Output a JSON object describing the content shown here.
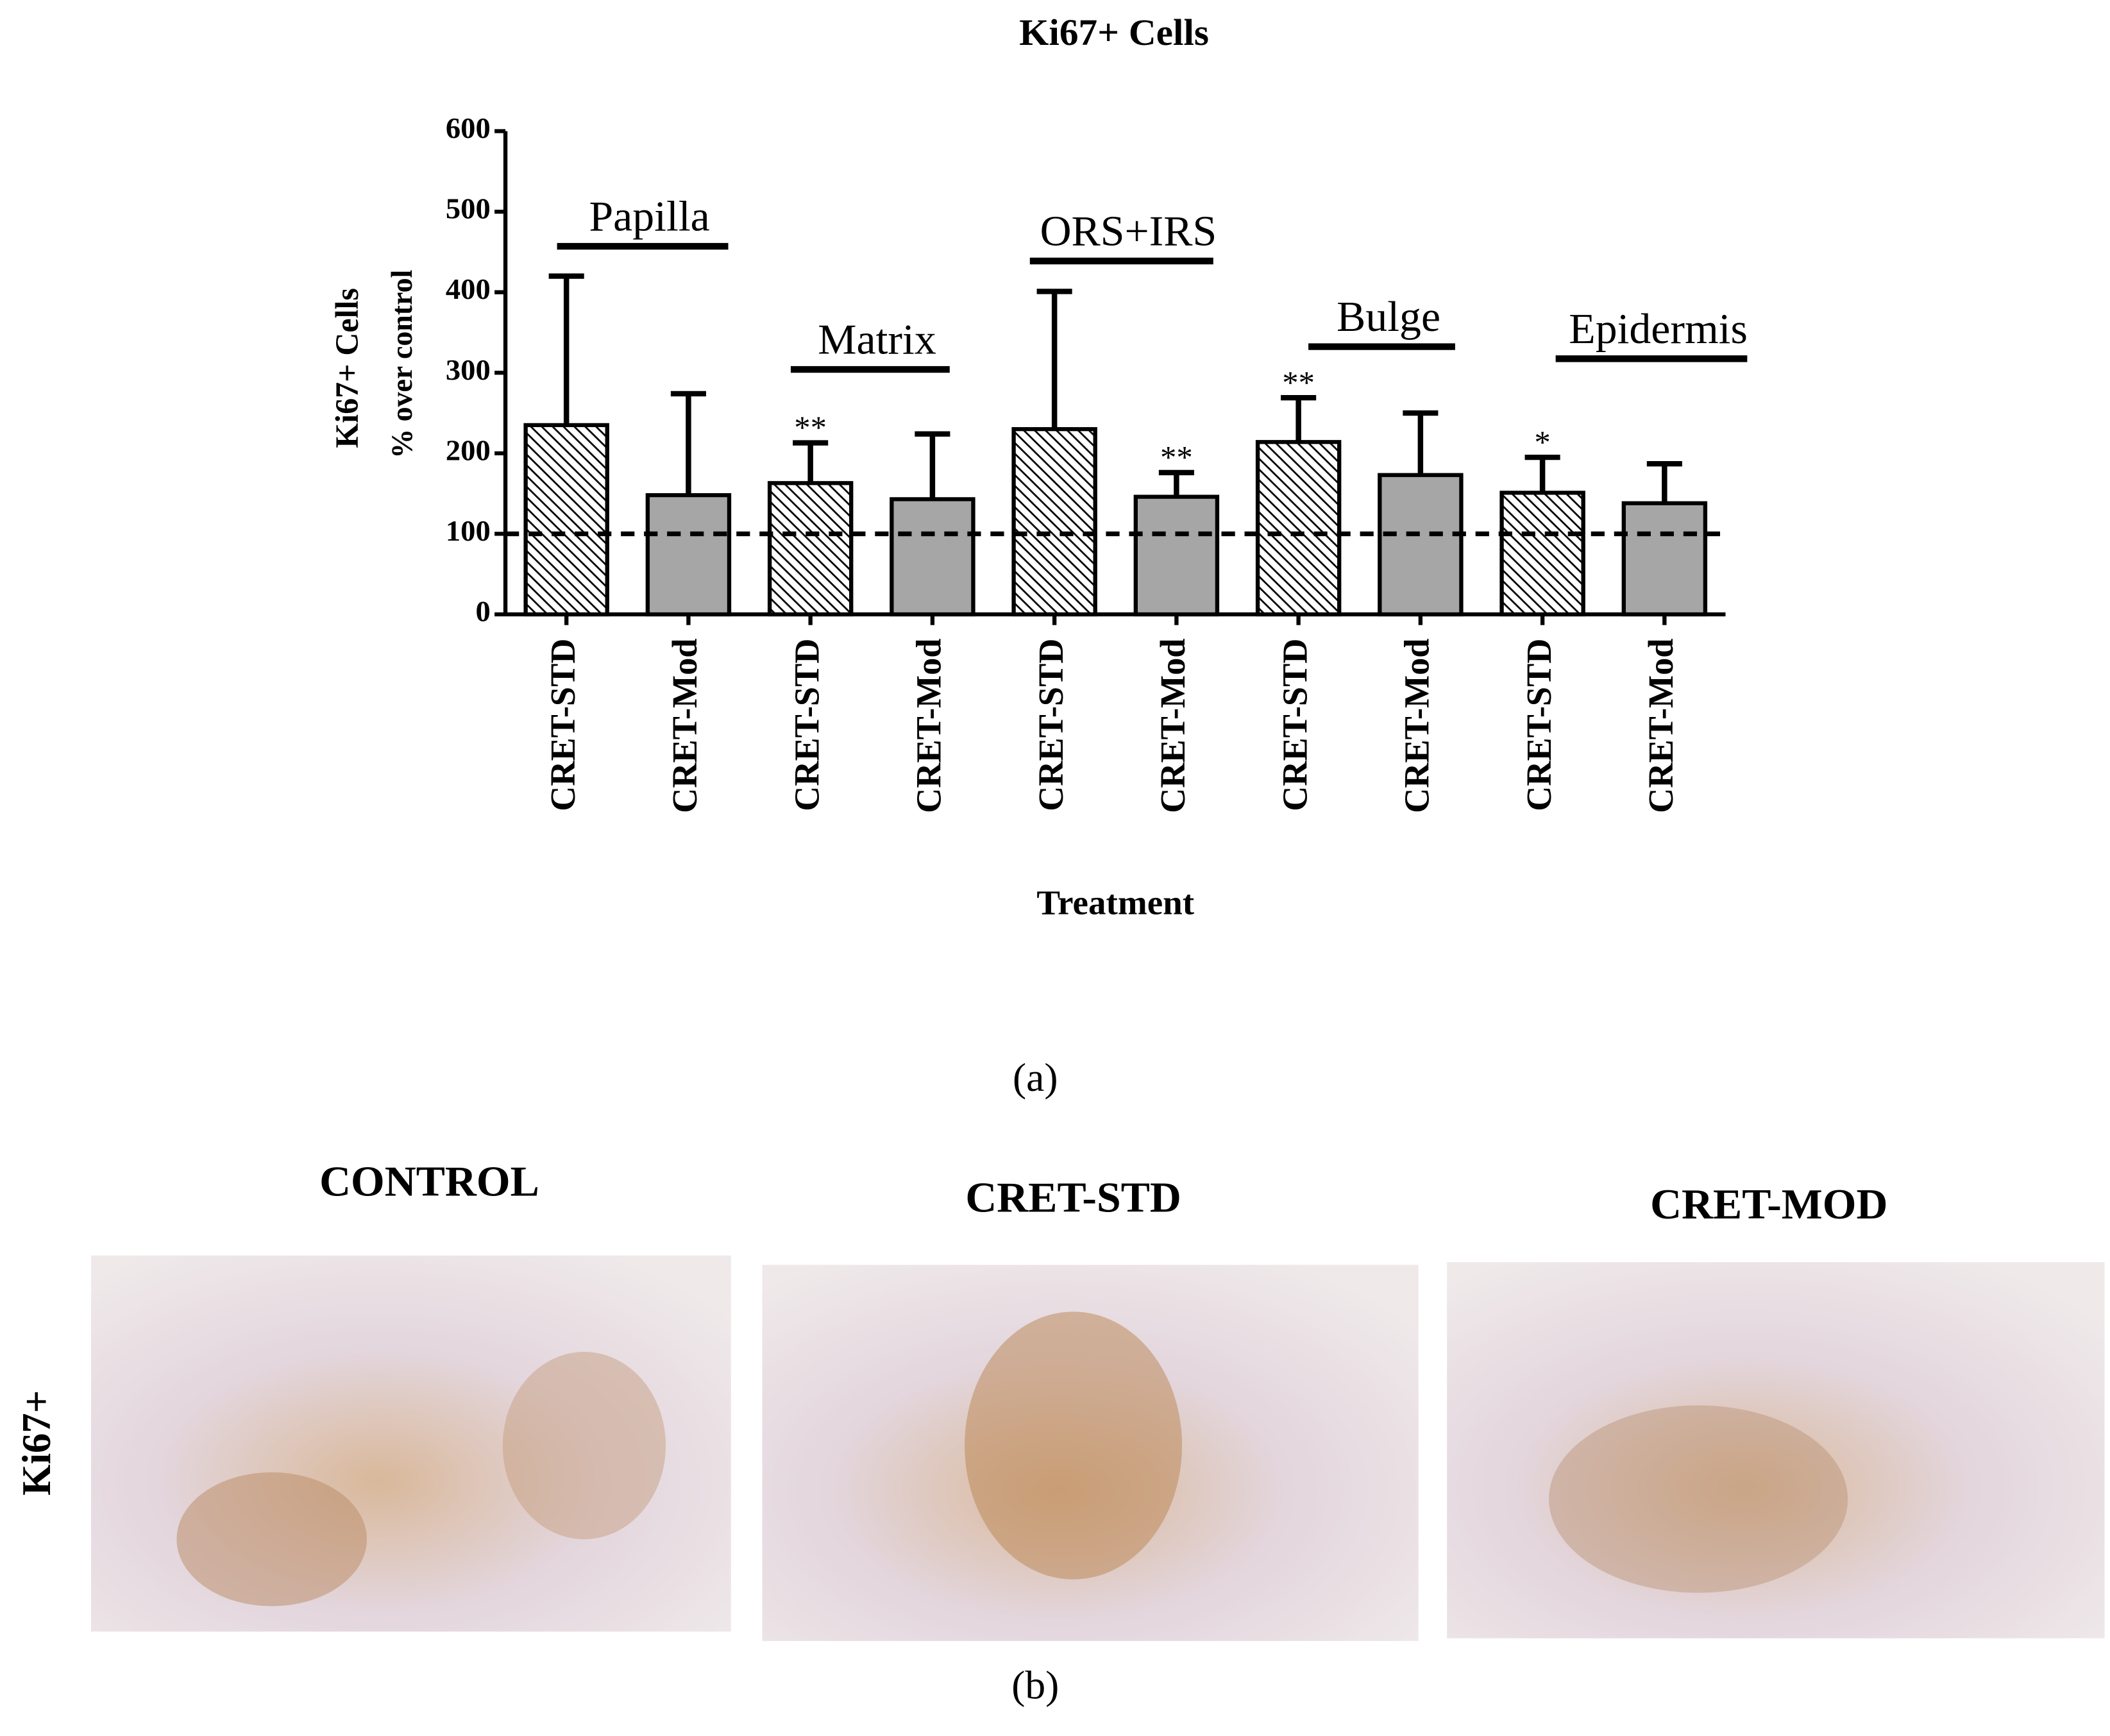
{
  "chart_data": {
    "type": "bar",
    "title": "Ki67+ Cells",
    "y_label": [
      "Ki67+ Cells",
      "% over control"
    ],
    "x_label": "Treatment",
    "categories": [
      "CRET-STD",
      "CRET-Mod",
      "CRET-STD",
      "CRET-Mod",
      "CRET-STD",
      "CRET-Mod",
      "CRET-STD",
      "CRET-Mod",
      "CRET-STD",
      "CRET-Mod"
    ],
    "values": [
      235,
      148,
      163,
      143,
      230,
      146,
      214,
      173,
      151,
      138
    ],
    "errors": [
      185,
      126,
      50,
      81,
      171,
      30,
      55,
      77,
      44,
      49
    ],
    "fills": [
      "hatched",
      "#a6a6a6",
      "hatched",
      "#a6a6a6",
      "hatched",
      "#a6a6a6",
      "hatched",
      "#a6a6a6",
      "hatched",
      "#a6a6a6"
    ],
    "significance": [
      null,
      null,
      "**",
      null,
      null,
      "**",
      "**",
      null,
      "*",
      null
    ],
    "groups": [
      "Papilla",
      "Matrix",
      "ORS+IRS",
      "Bulge",
      "Epidermis"
    ],
    "reference_line": 100,
    "ylim": [
      0,
      600
    ],
    "yticks": [
      0,
      100,
      200,
      300,
      400,
      500,
      600
    ]
  },
  "panel_a_label": "(a)",
  "panel_b": {
    "label": "(b)",
    "row_label": "Ki67+",
    "columns": [
      "CONTROL",
      "CRET-STD",
      "CRET-MOD"
    ]
  }
}
